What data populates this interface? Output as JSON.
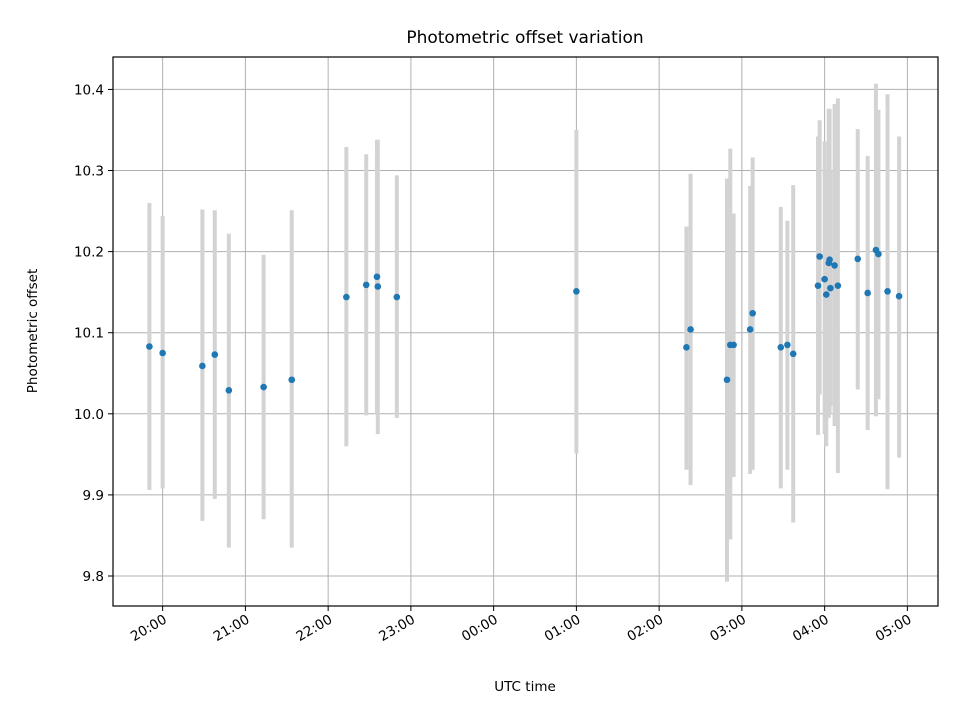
{
  "chart_data": {
    "type": "scatter",
    "title": "Photometric offset variation",
    "xlabel": "UTC time",
    "ylabel": "Photometric offset",
    "ylim": [
      9.763,
      10.44
    ],
    "xlim_hours": [
      19.4,
      29.37
    ],
    "grid": true,
    "legend": "none",
    "x_ticks": [
      {
        "label": "20:00",
        "hour": 20
      },
      {
        "label": "21:00",
        "hour": 21
      },
      {
        "label": "22:00",
        "hour": 22
      },
      {
        "label": "23:00",
        "hour": 23
      },
      {
        "label": "00:00",
        "hour": 24
      },
      {
        "label": "01:00",
        "hour": 25
      },
      {
        "label": "02:00",
        "hour": 26
      },
      {
        "label": "03:00",
        "hour": 27
      },
      {
        "label": "04:00",
        "hour": 28
      },
      {
        "label": "05:00",
        "hour": 29
      }
    ],
    "y_ticks": [
      9.8,
      9.9,
      10.0,
      10.1,
      10.2,
      10.3,
      10.4
    ],
    "colors": {
      "points": "#1f77b4",
      "error_bars": "#d3d3d3",
      "grid": "#b0b0b0"
    },
    "points": [
      {
        "hour": 19.84,
        "y": 10.083,
        "lo": 9.906,
        "hi": 10.26
      },
      {
        "hour": 20.0,
        "y": 10.075,
        "lo": 9.908,
        "hi": 10.244
      },
      {
        "hour": 20.48,
        "y": 10.059,
        "lo": 9.868,
        "hi": 10.252
      },
      {
        "hour": 20.63,
        "y": 10.073,
        "lo": 9.895,
        "hi": 10.251
      },
      {
        "hour": 20.8,
        "y": 10.029,
        "lo": 9.835,
        "hi": 10.222
      },
      {
        "hour": 21.22,
        "y": 10.033,
        "lo": 9.87,
        "hi": 10.196
      },
      {
        "hour": 21.56,
        "y": 10.042,
        "lo": 9.835,
        "hi": 10.251
      },
      {
        "hour": 22.22,
        "y": 10.144,
        "lo": 9.96,
        "hi": 10.329
      },
      {
        "hour": 22.46,
        "y": 10.159,
        "lo": 9.998,
        "hi": 10.32
      },
      {
        "hour": 22.59,
        "y": 10.169,
        "lo": 10.0,
        "hi": 10.338
      },
      {
        "hour": 22.6,
        "y": 10.157,
        "lo": 9.975,
        "hi": 10.338
      },
      {
        "hour": 22.83,
        "y": 10.144,
        "lo": 9.995,
        "hi": 10.294
      },
      {
        "hour": 25.0,
        "y": 10.151,
        "lo": 9.951,
        "hi": 10.35
      },
      {
        "hour": 26.33,
        "y": 10.082,
        "lo": 9.931,
        "hi": 10.231
      },
      {
        "hour": 26.38,
        "y": 10.104,
        "lo": 9.912,
        "hi": 10.296
      },
      {
        "hour": 26.82,
        "y": 10.042,
        "lo": 9.793,
        "hi": 10.29
      },
      {
        "hour": 26.86,
        "y": 10.085,
        "lo": 9.845,
        "hi": 10.327
      },
      {
        "hour": 26.9,
        "y": 10.085,
        "lo": 9.922,
        "hi": 10.247
      },
      {
        "hour": 27.1,
        "y": 10.104,
        "lo": 9.926,
        "hi": 10.281
      },
      {
        "hour": 27.13,
        "y": 10.124,
        "lo": 9.931,
        "hi": 10.316
      },
      {
        "hour": 27.47,
        "y": 10.082,
        "lo": 9.908,
        "hi": 10.255
      },
      {
        "hour": 27.55,
        "y": 10.085,
        "lo": 9.931,
        "hi": 10.238
      },
      {
        "hour": 27.62,
        "y": 10.074,
        "lo": 9.866,
        "hi": 10.282
      },
      {
        "hour": 27.92,
        "y": 10.158,
        "lo": 9.974,
        "hi": 10.342
      },
      {
        "hour": 27.94,
        "y": 10.194,
        "lo": 10.024,
        "hi": 10.362
      },
      {
        "hour": 28.0,
        "y": 10.166,
        "lo": 9.975,
        "hi": 10.336
      },
      {
        "hour": 28.02,
        "y": 10.147,
        "lo": 9.96,
        "hi": 10.301
      },
      {
        "hour": 28.05,
        "y": 10.186,
        "lo": 9.995,
        "hi": 10.376
      },
      {
        "hour": 28.06,
        "y": 10.19,
        "lo": 10.0,
        "hi": 10.376
      },
      {
        "hour": 28.07,
        "y": 10.155,
        "lo": 10.01,
        "hi": 10.3
      },
      {
        "hour": 28.12,
        "y": 10.183,
        "lo": 9.985,
        "hi": 10.382
      },
      {
        "hour": 28.16,
        "y": 10.158,
        "lo": 9.927,
        "hi": 10.389
      },
      {
        "hour": 28.4,
        "y": 10.191,
        "lo": 10.03,
        "hi": 10.351
      },
      {
        "hour": 28.52,
        "y": 10.149,
        "lo": 9.98,
        "hi": 10.318
      },
      {
        "hour": 28.62,
        "y": 10.202,
        "lo": 9.997,
        "hi": 10.407
      },
      {
        "hour": 28.65,
        "y": 10.197,
        "lo": 10.018,
        "hi": 10.375
      },
      {
        "hour": 28.76,
        "y": 10.151,
        "lo": 9.907,
        "hi": 10.394
      },
      {
        "hour": 28.9,
        "y": 10.145,
        "lo": 9.946,
        "hi": 10.342
      }
    ]
  }
}
